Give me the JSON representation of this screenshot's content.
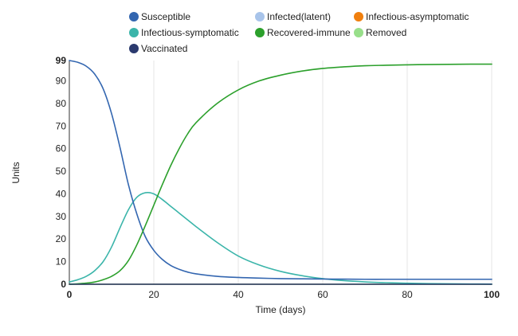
{
  "chart_data": {
    "type": "line",
    "xlabel": "Time (days)",
    "ylabel": "Units",
    "xlim": [
      0,
      100
    ],
    "ylim": [
      0,
      99
    ],
    "x_ticks": [
      0,
      20,
      40,
      60,
      80,
      100
    ],
    "x_tick_labels": [
      "0",
      "20",
      "40",
      "60",
      "80",
      "100"
    ],
    "y_ticks": [
      0,
      10,
      20,
      30,
      40,
      50,
      60,
      70,
      80,
      90,
      99
    ],
    "y_tick_labels": [
      "0",
      "10",
      "20",
      "30",
      "40",
      "50",
      "60",
      "70",
      "80",
      "90",
      "99"
    ],
    "grid": "vertical",
    "legend_position": "top",
    "x": [
      0,
      2,
      4,
      6,
      8,
      10,
      12,
      14,
      16,
      18,
      20,
      22,
      24,
      26,
      28,
      30,
      35,
      40,
      45,
      50,
      55,
      60,
      65,
      70,
      75,
      80,
      85,
      90,
      95,
      100
    ],
    "series": [
      {
        "name": "Susceptible",
        "color": "#3366b0",
        "values": [
          99,
          98.2,
          96.5,
          93,
          86.5,
          75.5,
          60.5,
          44,
          31,
          21,
          15,
          11,
          8.3,
          6.6,
          5.4,
          4.6,
          3.5,
          3.0,
          2.7,
          2.5,
          2.4,
          2.3,
          2.25,
          2.2,
          2.2,
          2.2,
          2.2,
          2.2,
          2.2,
          2.2
        ]
      },
      {
        "name": "Infected(latent)",
        "color": "#a8c4ea",
        "values": [
          0,
          0,
          0,
          0,
          0,
          0,
          0,
          0,
          0,
          0,
          0,
          0,
          0,
          0,
          0,
          0,
          0,
          0,
          0,
          0,
          0,
          0,
          0,
          0,
          0,
          0,
          0,
          0,
          0,
          0
        ]
      },
      {
        "name": "Infectious-asymptomatic",
        "color": "#f07f0e",
        "values": [
          0,
          0,
          0,
          0,
          0,
          0,
          0,
          0,
          0,
          0,
          0,
          0,
          0,
          0,
          0,
          0,
          0,
          0,
          0,
          0,
          0,
          0,
          0,
          0,
          0,
          0,
          0,
          0,
          0,
          0
        ]
      },
      {
        "name": "Infectious-symptomatic",
        "color": "#3bb5aa",
        "values": [
          1,
          2,
          3.5,
          6,
          10,
          16.5,
          25,
          33,
          38.5,
          40.5,
          40,
          37.5,
          34.5,
          31.5,
          28.5,
          25.5,
          18.5,
          12.5,
          8.5,
          5.7,
          3.8,
          2.5,
          1.6,
          1.05,
          0.7,
          0.45,
          0.3,
          0.2,
          0.12,
          0.08
        ]
      },
      {
        "name": "Recovered-immune",
        "color": "#2ca02c",
        "values": [
          0,
          0.2,
          0.5,
          1.0,
          2.0,
          3.5,
          6,
          10.5,
          17.5,
          26,
          35,
          44,
          52.5,
          60,
          66.5,
          71.5,
          80,
          86,
          90,
          92.5,
          94.3,
          95.5,
          96.2,
          96.7,
          96.9,
          97.1,
          97.2,
          97.3,
          97.4,
          97.4
        ]
      },
      {
        "name": "Removed",
        "color": "#98df8a",
        "values": [
          0,
          0,
          0,
          0,
          0,
          0,
          0,
          0,
          0,
          0,
          0,
          0,
          0,
          0,
          0,
          0,
          0,
          0,
          0,
          0,
          0,
          0,
          0,
          0,
          0,
          0,
          0,
          0,
          0,
          0
        ]
      },
      {
        "name": "Vaccinated",
        "color": "#2b3a6e",
        "values": [
          0,
          0,
          0,
          0,
          0,
          0,
          0,
          0,
          0,
          0,
          0,
          0,
          0,
          0,
          0,
          0,
          0,
          0,
          0,
          0,
          0,
          0,
          0,
          0,
          0,
          0,
          0,
          0,
          0,
          0
        ]
      }
    ],
    "draw_order": [
      "Infected(latent)",
      "Infectious-asymptomatic",
      "Removed",
      "Infectious-symptomatic",
      "Susceptible",
      "Recovered-immune",
      "Vaccinated"
    ]
  }
}
